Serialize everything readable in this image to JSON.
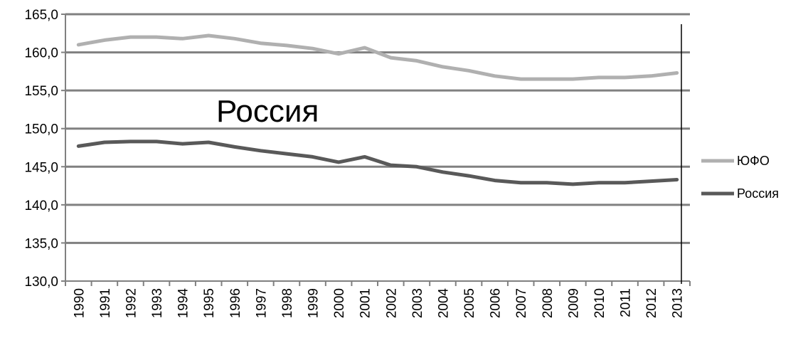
{
  "chart_data": {
    "type": "line",
    "title": "",
    "xlabel": "",
    "ylabel": "",
    "categories": [
      "1990",
      "1991",
      "1992",
      "1993",
      "1994",
      "1995",
      "1996",
      "1997",
      "1998",
      "1999",
      "2000",
      "2001",
      "2002",
      "2003",
      "2004",
      "2005",
      "2006",
      "2007",
      "2008",
      "2009",
      "2010",
      "2011",
      "2012",
      "2013"
    ],
    "ylim": [
      130,
      165
    ],
    "yticks": [
      "130,0",
      "135,0",
      "140,0",
      "145,0",
      "150,0",
      "155,0",
      "160,0",
      "165,0"
    ],
    "grid": true,
    "legend_position": "right",
    "annotation": "Россия",
    "series": [
      {
        "name": "ЮФО",
        "color": "#b0b0b0",
        "values": [
          161.0,
          161.6,
          162.0,
          162.0,
          161.8,
          162.2,
          161.8,
          161.2,
          160.9,
          160.5,
          159.8,
          160.6,
          159.3,
          158.9,
          158.1,
          157.6,
          156.9,
          156.5,
          156.5,
          156.5,
          156.7,
          156.7,
          156.9,
          157.3
        ]
      },
      {
        "name": "Россия",
        "color": "#595959",
        "values": [
          147.7,
          148.2,
          148.3,
          148.3,
          148.0,
          148.2,
          147.6,
          147.1,
          146.7,
          146.3,
          145.6,
          146.3,
          145.2,
          145.0,
          144.3,
          143.8,
          143.2,
          142.9,
          142.9,
          142.7,
          142.9,
          142.9,
          143.1,
          143.3
        ]
      }
    ]
  }
}
